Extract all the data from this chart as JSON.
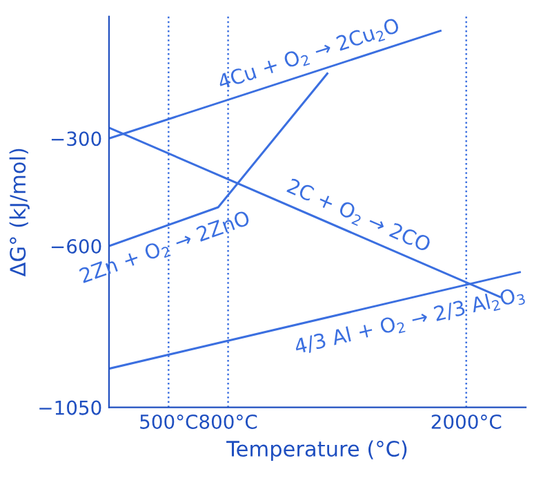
{
  "chart_data": {
    "type": "line",
    "xlabel": "Temperature (°C)",
    "ylabel": "ΔG° (kJ/mol)",
    "xlim": [
      200,
      2300
    ],
    "ylim": [
      -1050,
      40
    ],
    "xticks": [
      {
        "value": 500,
        "label": "500°C"
      },
      {
        "value": 800,
        "label": "800°C"
      },
      {
        "value": 2000,
        "label": "2000°C"
      }
    ],
    "yticks": [
      {
        "value": -300,
        "label": "−300"
      },
      {
        "value": -600,
        "label": "−600"
      },
      {
        "value": -1050,
        "label": "−1050"
      }
    ],
    "ref_lines": [
      {
        "axis": "x",
        "value": 500,
        "line_style": "dotted",
        "color": "#3b6fe0"
      },
      {
        "axis": "x",
        "value": 800,
        "line_style": "dotted",
        "color": "#3b6fe0"
      },
      {
        "axis": "x",
        "value": 2000,
        "line_style": "dotted",
        "color": "#3b6fe0"
      }
    ],
    "series": [
      {
        "name": "4Cu + O$_{2}$ → 2Cu$_{2}$O",
        "color": "#3b6fe0",
        "x": [
          200,
          1870
        ],
        "values": [
          -300,
          0
        ]
      },
      {
        "name": "2C + O$_{2}$ → 2CO",
        "color": "#3b6fe0",
        "x": [
          200,
          2170
        ],
        "values": [
          -270,
          -742
        ]
      },
      {
        "name": "2Zn + O$_{2}$ → 2ZnO",
        "color": "#3b6fe0",
        "x": [
          200,
          750,
          1300
        ],
        "values": [
          -600,
          -492,
          -119
        ]
      },
      {
        "name": "4/3 Al + O$_{2}$ → 2/3 Al$_{2}$O$_{3}$",
        "color": "#3b6fe0",
        "x": [
          200,
          2270
        ],
        "values": [
          -942,
          -673
        ]
      }
    ]
  }
}
